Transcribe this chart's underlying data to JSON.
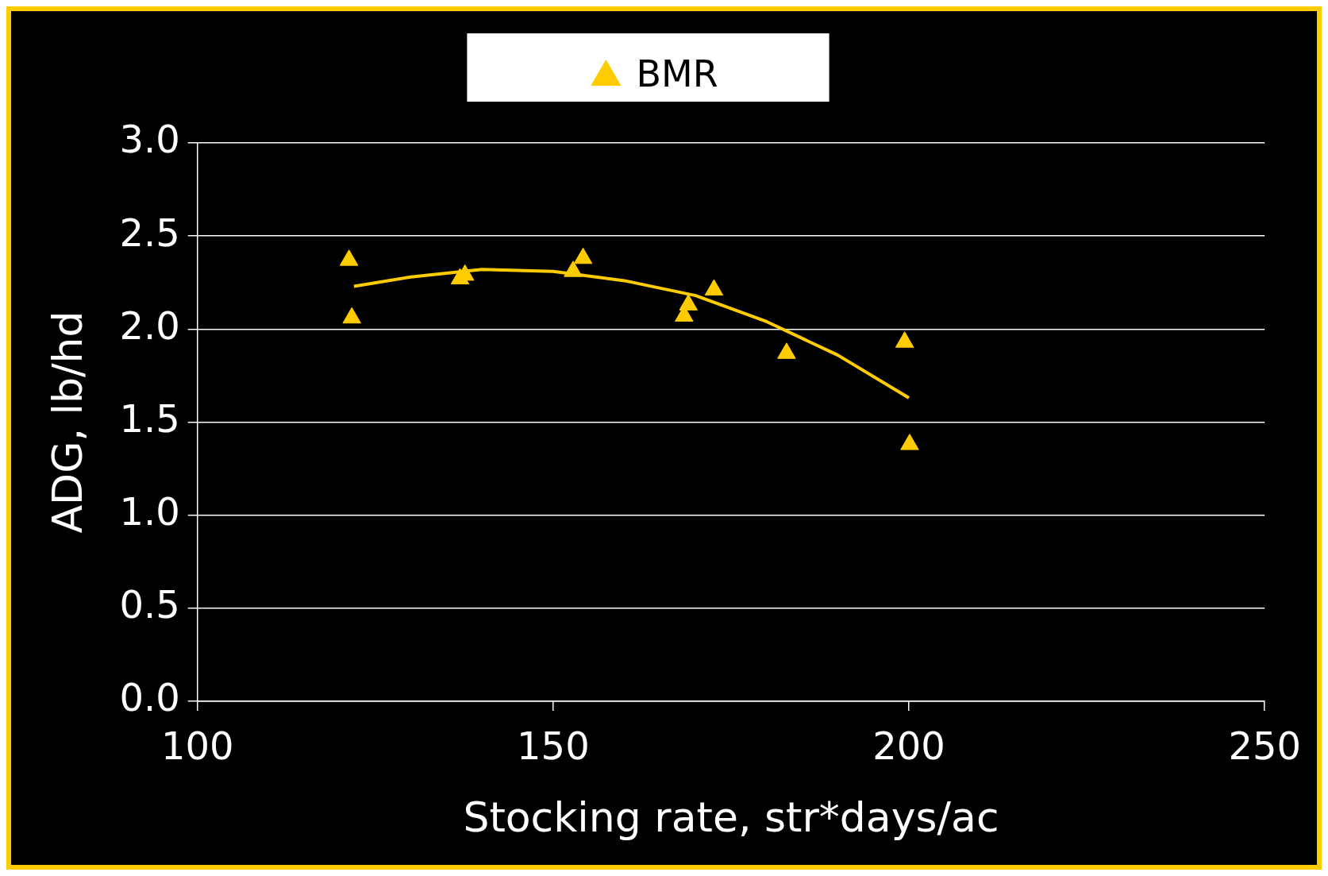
{
  "chart_data": {
    "type": "scatter",
    "xlabel": "Stocking rate, str*days/ac",
    "ylabel": "ADG, lb/hd",
    "xlim": [
      100,
      250
    ],
    "xticks": [
      100,
      150,
      200,
      250
    ],
    "ylim": [
      0,
      3
    ],
    "yticks": [
      {
        "value": 0,
        "label": "0.0"
      },
      {
        "value": 0.5,
        "label": "0.5"
      },
      {
        "value": 1,
        "label": "1.0"
      },
      {
        "value": 1.5,
        "label": "1.5"
      },
      {
        "value": 2,
        "label": "2.0"
      },
      {
        "value": 2.5,
        "label": "2.5"
      },
      {
        "value": 3,
        "label": "3.0"
      }
    ],
    "grid": "y",
    "legend": "top",
    "marker": "triangle",
    "series": [
      {
        "name": "BMR",
        "color": "#ffcc00",
        "x": [
          121.3,
          121.7,
          136.9,
          137.6,
          152.8,
          154.2,
          168.4,
          169.0,
          172.6,
          182.8,
          199.4,
          200.1
        ],
        "values": [
          2.37,
          2.06,
          2.27,
          2.29,
          2.31,
          2.38,
          2.07,
          2.13,
          2.21,
          1.87,
          1.93,
          1.38
        ]
      },
      {
        "type": "line",
        "color": "#ffcc00",
        "marker": "none",
        "x": [
          122,
          130,
          140,
          150,
          160,
          170,
          180,
          190,
          200
        ],
        "values": [
          2.23,
          2.28,
          2.32,
          2.31,
          2.26,
          2.18,
          2.04,
          1.86,
          1.63
        ]
      }
    ]
  }
}
